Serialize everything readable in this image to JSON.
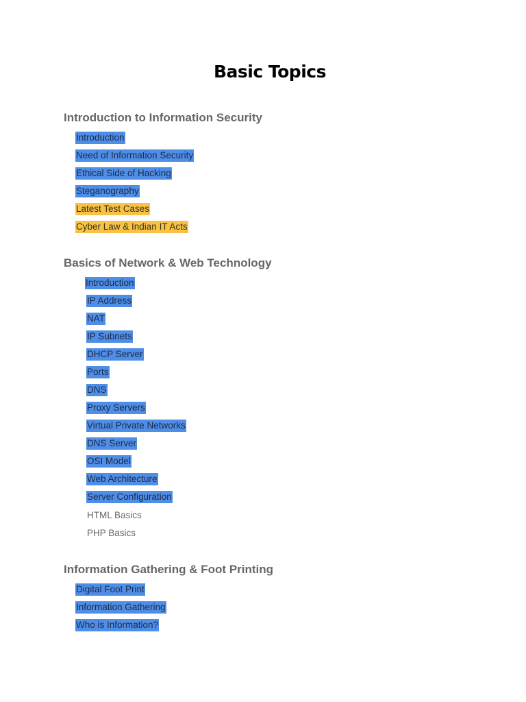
{
  "document": {
    "title": "Basic Topics",
    "sections": [
      {
        "heading": "Introduction to Information Security",
        "items": [
          {
            "label": "Introduction",
            "highlight": "#4f8ee6"
          },
          {
            "label": "Need of Information Security",
            "highlight": "#4f8ee6"
          },
          {
            "label": "Ethical Side of Hacking",
            "highlight": "#4f8ee6"
          },
          {
            "label": "Steganography",
            "highlight": "#4f8ee6"
          },
          {
            "label": "Latest Test Cases",
            "highlight": "#f9c244"
          },
          {
            "label": "Cyber Law & Indian IT Acts",
            "highlight": "#f9c244"
          }
        ]
      },
      {
        "heading": "Basics of Network & Web Technology",
        "items": [
          {
            "label": "Introduction",
            "highlight": "#4f8ee6"
          },
          {
            "label": "IP Address",
            "highlight": "#4f8ee6"
          },
          {
            "label": "NAT",
            "highlight": "#4f8ee6"
          },
          {
            "label": "IP Subnets",
            "highlight": "#4f8ee6"
          },
          {
            "label": "DHCP Server",
            "highlight": "#4f8ee6"
          },
          {
            "label": "Ports",
            "highlight": "#4f8ee6"
          },
          {
            "label": "DNS",
            "highlight": "#4f8ee6"
          },
          {
            "label": "Proxy Servers",
            "highlight": "#4f8ee6"
          },
          {
            "label": "Virtual Private Networks",
            "highlight": "#4f8ee6"
          },
          {
            "label": "DNS Server",
            "highlight": "#4f8ee6"
          },
          {
            "label": "OSI Model",
            "highlight": "#4f8ee6"
          },
          {
            "label": "Web Architecture",
            "highlight": "#4f8ee6"
          },
          {
            "label": "Server Configuration",
            "highlight": "#4f8ee6"
          },
          {
            "label": "HTML Basics",
            "highlight": "none"
          },
          {
            "label": "PHP Basics",
            "highlight": "none"
          }
        ]
      },
      {
        "heading": "Information Gathering & Foot Printing",
        "items": [
          {
            "label": "Digital Foot Print",
            "highlight": "#4f8ee6"
          },
          {
            "label": "Information Gathering",
            "highlight": "#4f8ee6"
          },
          {
            "label": "Who is Information?",
            "highlight": "#4f8ee6"
          }
        ]
      }
    ]
  }
}
